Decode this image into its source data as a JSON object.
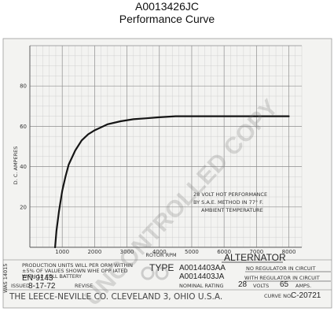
{
  "header": {
    "part_number": "A0013426JC",
    "subtitle": "Performance Curve"
  },
  "chart_data": {
    "type": "line",
    "title": "",
    "xlabel": "ROTOR RPM",
    "ylabel": "D. C. AMPERES",
    "xlim": [
      0,
      8400
    ],
    "ylim": [
      0,
      100
    ],
    "x_ticks": [
      1000,
      2000,
      3000,
      4000,
      5000,
      6000,
      7000,
      8000
    ],
    "y_ticks": [
      20,
      40,
      60,
      80
    ],
    "grid": true,
    "series": [
      {
        "x": [
          780,
          820,
          900,
          1000,
          1100,
          1200,
          1400,
          1600,
          1800,
          2000,
          2400,
          2800,
          3200,
          3600,
          4000,
          4500,
          5000,
          6000,
          7000,
          8000
        ],
        "y": [
          0,
          8,
          18,
          28,
          35,
          41,
          48,
          53,
          56,
          58,
          61,
          62.5,
          63.5,
          64,
          64.5,
          65,
          65,
          65,
          65,
          65
        ]
      }
    ],
    "annotation_lines": [
      "28 VOLT HOT PERFORMANCE",
      "BY S.A.E. METHOD IN 77° F.",
      "AMBIENT TEMPERATURE"
    ]
  },
  "sheet": {
    "production_lines": [
      "PRODUCTION UNITS WILL PER ORM WITHIN",
      "±5% OF VALUES SHOWN WHE OPP IATED",
      "WITH 12 CELL BATTERY"
    ],
    "side_code": "WAS 14015",
    "issued_label": "ISSUED",
    "issued_date": "8-17-72",
    "en_number": "EN-9143",
    "revised_label": "REVISE",
    "company": "THE LEECE-NEVILLE CO. CLEVELAND 3, OHIO U.S.A.",
    "alternator_label": "ALTERNATOR",
    "type_label": "TYPE",
    "type_1": "A0014403AA",
    "type_1_note": "NO REGULATOR IN CIRCUIT",
    "type_2": "A0014403JA",
    "type_2_note": "WITH REGULATOR IN CIRCUIT",
    "nominal_label": "NOMINAL RATING",
    "volts_value": "28",
    "volts_label": "VOLTS",
    "amps_value": "65",
    "amps_label": "AMPS.",
    "curve_label": "CURVE NO.",
    "curve_no": "C-20721"
  }
}
